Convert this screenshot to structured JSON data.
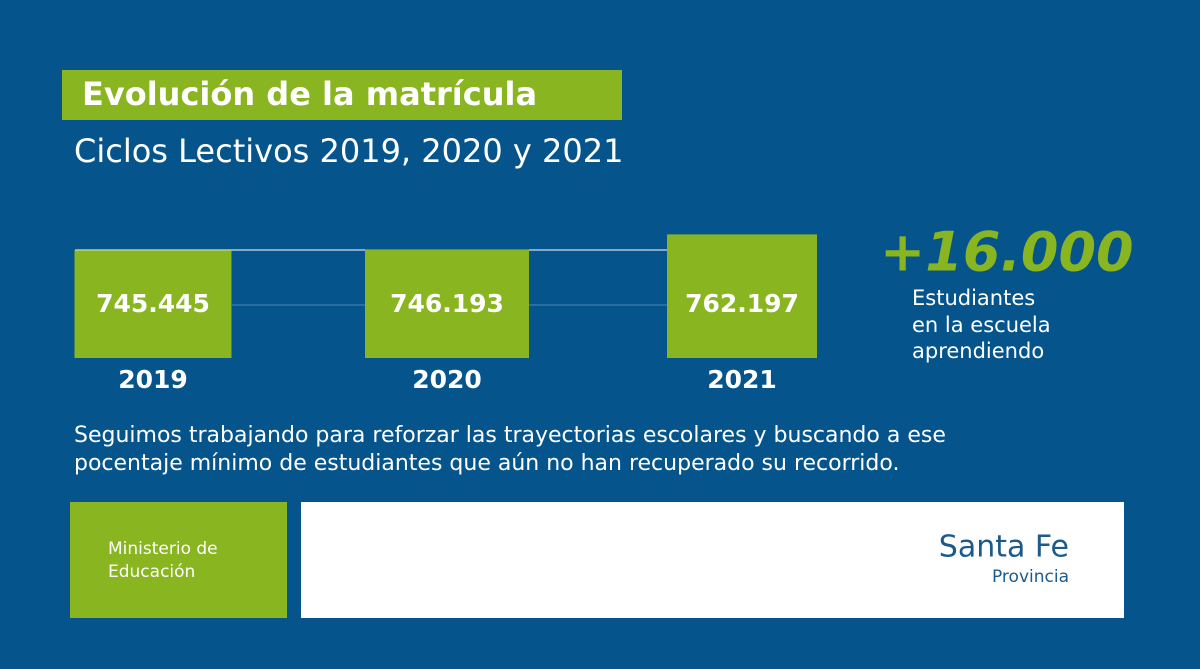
{
  "chart_data": {
    "type": "bar",
    "title": "Evolución de la matrícula",
    "subtitle": "Ciclos Lectivos 2019, 2020 y 2021",
    "categories": [
      "2019",
      "2020",
      "2021"
    ],
    "values": [
      745445,
      746193,
      762197
    ],
    "value_labels": [
      "745.445",
      "746.193",
      "762.197"
    ],
    "color": "#88b520",
    "ylim": [
      632000,
      770000
    ]
  },
  "highlight": {
    "value": "+16.000",
    "lines": [
      "Estudiantes",
      "en la escuela",
      "aprendiendo"
    ]
  },
  "body": [
    "Seguimos trabajando para reforzar las trayectorias escolares y buscando a ese",
    "pocentaje mínimo de estudiantes que aún no han recuperado su recorrido."
  ],
  "footer": {
    "ministry": [
      "Ministerio de",
      "Educación"
    ],
    "brand": "Santa Fe",
    "brand_sub": "Provincia"
  }
}
